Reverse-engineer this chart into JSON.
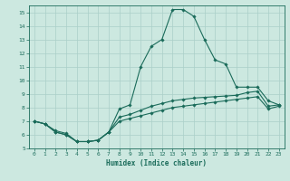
{
  "xlabel": "Humidex (Indice chaleur)",
  "xlim": [
    -0.5,
    23.5
  ],
  "ylim": [
    5,
    15.5
  ],
  "xticks": [
    0,
    1,
    2,
    3,
    4,
    5,
    6,
    7,
    8,
    9,
    10,
    11,
    12,
    13,
    14,
    15,
    16,
    17,
    18,
    19,
    20,
    21,
    22,
    23
  ],
  "yticks": [
    5,
    6,
    7,
    8,
    9,
    10,
    11,
    12,
    13,
    14,
    15
  ],
  "bg_color": "#cce8e0",
  "line_color": "#1a6b5a",
  "grid_color": "#aacfc8",
  "y_main": [
    7.0,
    6.8,
    6.3,
    6.1,
    5.5,
    5.5,
    5.6,
    6.2,
    7.9,
    8.2,
    11.0,
    12.5,
    13.0,
    15.2,
    15.2,
    14.7,
    13.0,
    11.5,
    11.2,
    9.5,
    9.5,
    9.5,
    8.5,
    8.2
  ],
  "y_mid": [
    7.0,
    6.8,
    6.2,
    6.0,
    5.5,
    5.5,
    5.6,
    6.2,
    7.3,
    7.5,
    7.8,
    8.1,
    8.3,
    8.5,
    8.6,
    8.7,
    8.75,
    8.8,
    8.85,
    8.9,
    9.1,
    9.2,
    8.1,
    8.2
  ],
  "y_low": [
    7.0,
    6.8,
    6.2,
    6.0,
    5.5,
    5.5,
    5.6,
    6.2,
    7.0,
    7.2,
    7.4,
    7.6,
    7.8,
    8.0,
    8.1,
    8.2,
    8.3,
    8.4,
    8.5,
    8.6,
    8.7,
    8.8,
    7.9,
    8.1
  ]
}
